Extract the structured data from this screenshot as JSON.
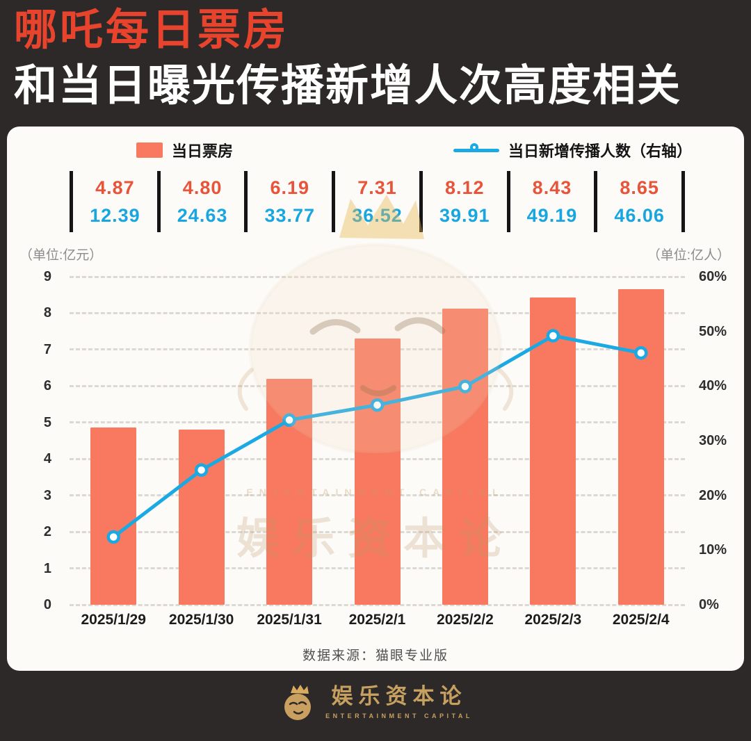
{
  "title": {
    "line1": "哪吒每日票房",
    "line2": "和当日曝光传播新增人次高度相关"
  },
  "legend": {
    "bar_label": "当日票房",
    "line_label": "当日新增传播人数（右轴）"
  },
  "units": {
    "left": "（单位:亿元）",
    "right": "（单位:亿人）"
  },
  "data_labels": [
    {
      "box_office": "4.87",
      "spread": "12.39"
    },
    {
      "box_office": "4.80",
      "spread": "24.63"
    },
    {
      "box_office": "6.19",
      "spread": "33.77"
    },
    {
      "box_office": "7.31",
      "spread": "36.52"
    },
    {
      "box_office": "8.12",
      "spread": "39.91"
    },
    {
      "box_office": "8.43",
      "spread": "49.19"
    },
    {
      "box_office": "8.65",
      "spread": "46.06"
    }
  ],
  "chart_data": {
    "type": "bar+line",
    "title": "哪吒每日票房和当日曝光传播新增人次高度相关",
    "categories": [
      "2025/1/29",
      "2025/1/30",
      "2025/1/31",
      "2025/2/1",
      "2025/2/2",
      "2025/2/3",
      "2025/2/4"
    ],
    "series": [
      {
        "name": "当日票房",
        "type": "bar",
        "axis": "left",
        "color": "#f8795f",
        "values": [
          4.87,
          4.8,
          6.19,
          7.31,
          8.12,
          8.43,
          8.65
        ]
      },
      {
        "name": "当日新增传播人数（右轴）",
        "type": "line",
        "axis": "right",
        "color": "#1ba9e4",
        "values": [
          12.39,
          24.63,
          33.77,
          36.52,
          39.91,
          49.19,
          46.06
        ]
      }
    ],
    "left_axis": {
      "label": "（单位:亿元）",
      "min": 0,
      "max": 9,
      "ticks": [
        0,
        1,
        2,
        3,
        4,
        5,
        6,
        7,
        8,
        9
      ]
    },
    "right_axis": {
      "label": "（单位:亿人）",
      "min": 0,
      "max": 60,
      "ticks": [
        "0%",
        "10%",
        "20%",
        "30%",
        "40%",
        "50%",
        "60%"
      ]
    },
    "grid": "dashed horizontal",
    "legend_position": "top"
  },
  "source": "数据来源：猫眼专业版",
  "watermark": {
    "text_cn": "娱乐资本论",
    "text_en": "ENTERTAINMENT CAPITAL"
  },
  "footer": {
    "brand": "娱乐资本论",
    "brand_en": "ENTERTAINMENT CAPITAL"
  },
  "colors": {
    "background": "#2e2929",
    "title_red": "#e8432d",
    "bar": "#f8795f",
    "line": "#1ba9e4",
    "card": "#fcfbf8",
    "gold": "#c6a05f"
  }
}
